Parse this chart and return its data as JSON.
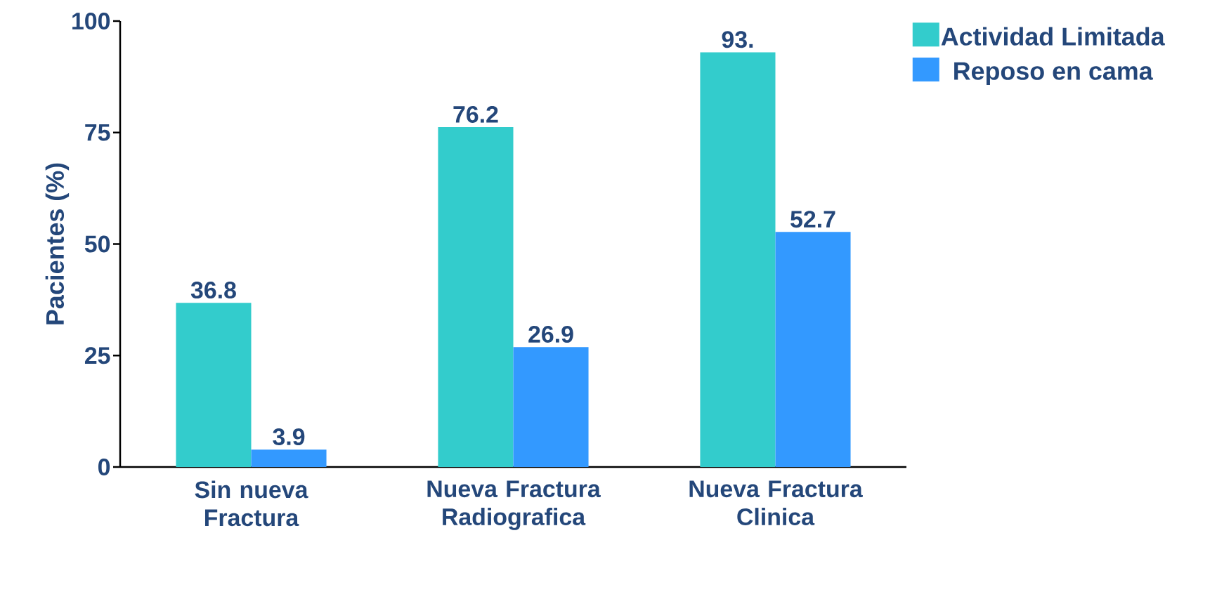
{
  "chart_data": {
    "type": "bar",
    "ylabel": "Pacientes (%)",
    "categories": [
      "Sin nueva Fractura",
      "Nueva Fractura Radiografica",
      "Nueva Fractura Clinica"
    ],
    "series": [
      {
        "name": "Actividad Limitada",
        "color": "#33cccc",
        "values": [
          36.8,
          76.2,
          93
        ],
        "value_labels": [
          "36.8",
          "76.2",
          "93."
        ]
      },
      {
        "name": "Reposo en cama",
        "color": "#3399ff",
        "values": [
          3.9,
          26.9,
          52.7
        ],
        "value_labels": [
          "3.9",
          "26.9",
          "52.7"
        ]
      }
    ],
    "ylim": [
      0,
      100
    ],
    "yticks": [
      0,
      25,
      50,
      75,
      100
    ],
    "grid": false,
    "legend": "top right"
  }
}
